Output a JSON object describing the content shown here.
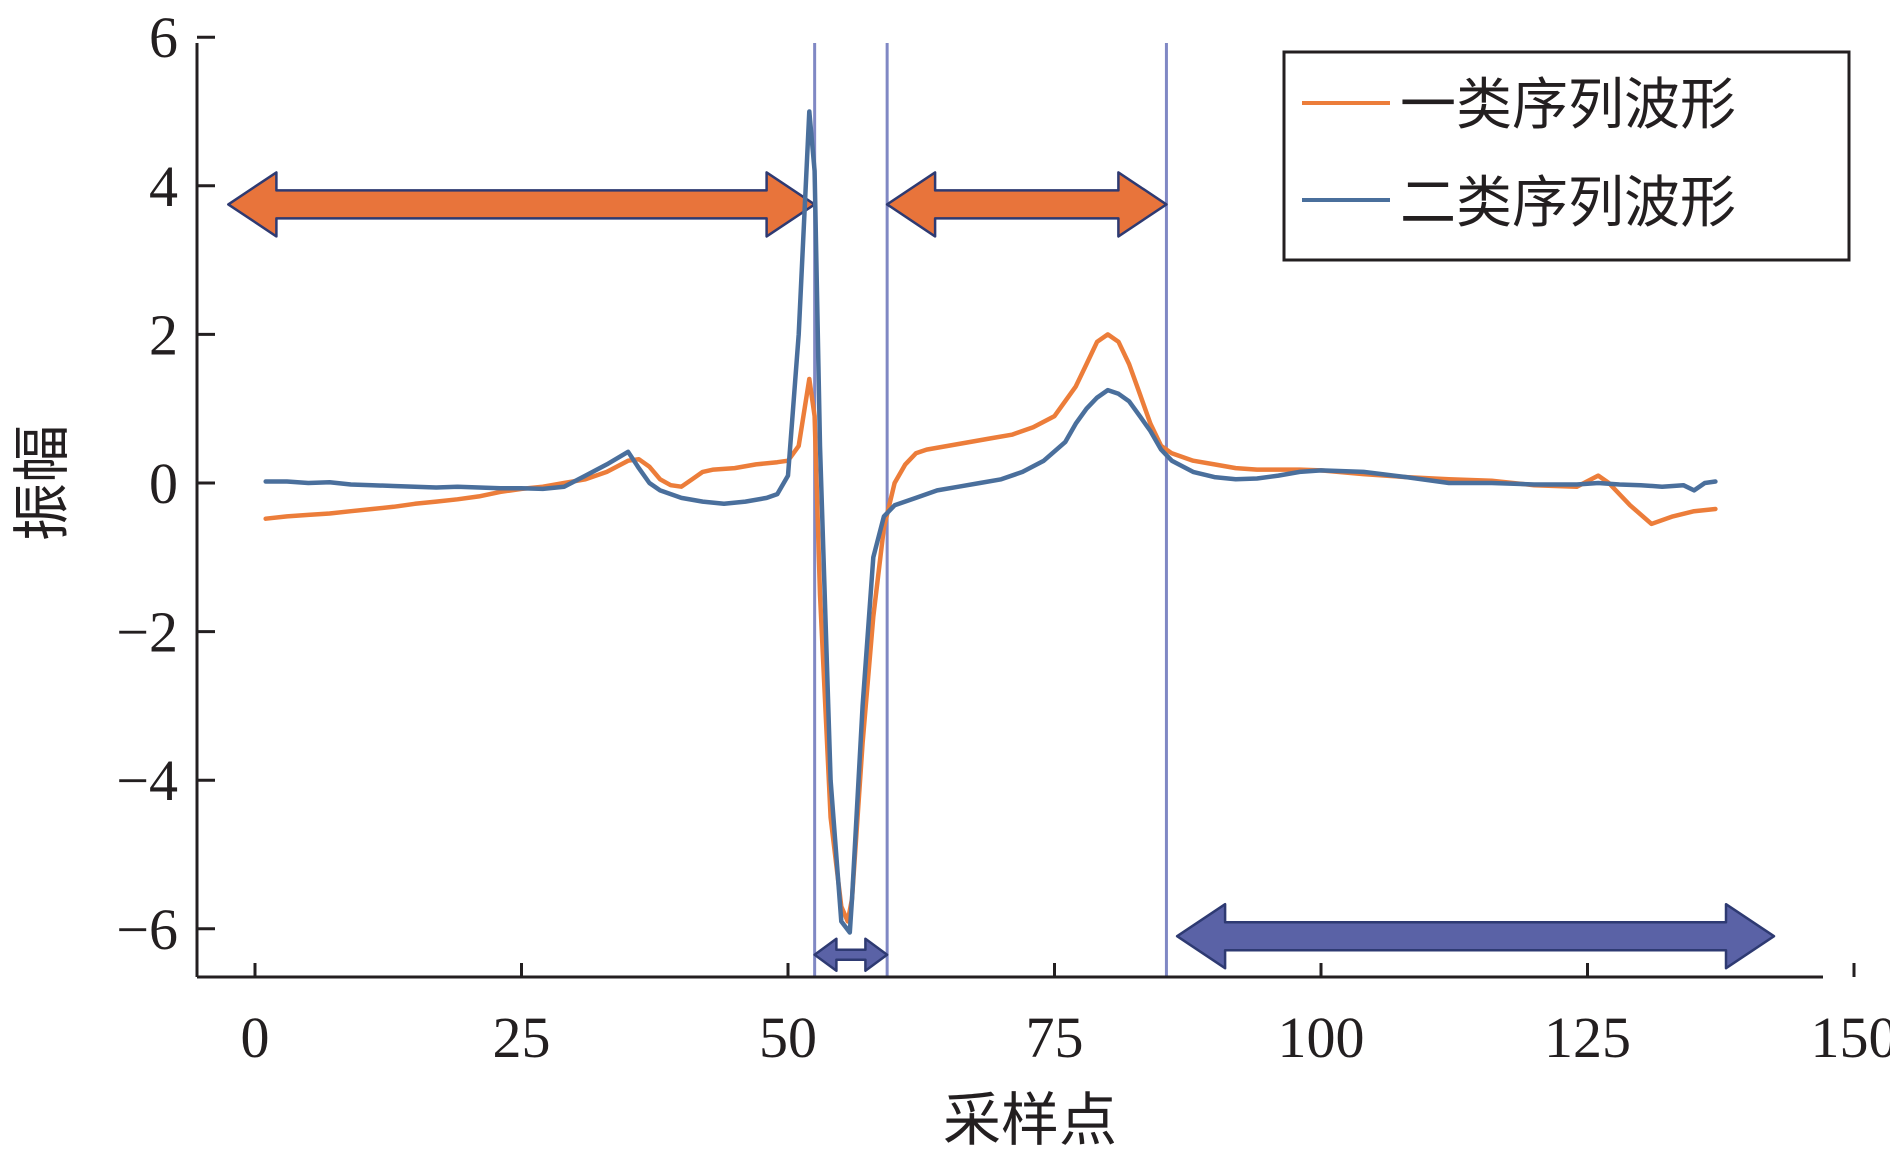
{
  "chart_data": {
    "type": "line",
    "xlabel": "采样点",
    "ylabel": "振幅",
    "xlim": [
      -5,
      150
    ],
    "ylim": [
      -6.8,
      6
    ],
    "xticks": [
      "0",
      "25",
      "50",
      "75",
      "100",
      "125",
      "150"
    ],
    "yticks": [
      "6",
      "4",
      "2",
      "0",
      "−2",
      "−4",
      "−6"
    ],
    "legend_position": "top-right",
    "legend": [
      {
        "label": "一类序列波形",
        "color": "#ec7d3a"
      },
      {
        "label": "二类序列波形",
        "color": "#4a6f9c"
      }
    ],
    "series": [
      {
        "name": "一类序列波形",
        "color": "#ec7d3a",
        "points": [
          [
            1,
            -0.48
          ],
          [
            3,
            -0.45
          ],
          [
            5,
            -0.43
          ],
          [
            7,
            -0.41
          ],
          [
            9,
            -0.38
          ],
          [
            11,
            -0.35
          ],
          [
            13,
            -0.32
          ],
          [
            15,
            -0.28
          ],
          [
            17,
            -0.25
          ],
          [
            19,
            -0.22
          ],
          [
            21,
            -0.18
          ],
          [
            23,
            -0.12
          ],
          [
            25,
            -0.08
          ],
          [
            27,
            -0.05
          ],
          [
            29,
            0.0
          ],
          [
            31,
            0.05
          ],
          [
            33,
            0.15
          ],
          [
            35,
            0.3
          ],
          [
            36,
            0.32
          ],
          [
            37,
            0.22
          ],
          [
            38,
            0.05
          ],
          [
            39,
            -0.03
          ],
          [
            40,
            -0.05
          ],
          [
            41,
            0.05
          ],
          [
            42,
            0.15
          ],
          [
            43,
            0.18
          ],
          [
            45,
            0.2
          ],
          [
            47,
            0.25
          ],
          [
            49,
            0.28
          ],
          [
            50,
            0.3
          ],
          [
            51,
            0.5
          ],
          [
            52,
            1.4
          ],
          [
            52.5,
            0.9
          ],
          [
            53,
            -1.5
          ],
          [
            54,
            -4.5
          ],
          [
            55,
            -5.7
          ],
          [
            55.6,
            -5.9
          ],
          [
            56,
            -5.6
          ],
          [
            57,
            -3.5
          ],
          [
            58,
            -1.8
          ],
          [
            59,
            -0.6
          ],
          [
            60,
            0.0
          ],
          [
            61,
            0.25
          ],
          [
            62,
            0.4
          ],
          [
            63,
            0.45
          ],
          [
            65,
            0.5
          ],
          [
            67,
            0.55
          ],
          [
            69,
            0.6
          ],
          [
            71,
            0.65
          ],
          [
            73,
            0.75
          ],
          [
            75,
            0.9
          ],
          [
            77,
            1.3
          ],
          [
            78,
            1.6
          ],
          [
            79,
            1.9
          ],
          [
            80,
            2.0
          ],
          [
            81,
            1.9
          ],
          [
            82,
            1.6
          ],
          [
            83,
            1.2
          ],
          [
            84,
            0.8
          ],
          [
            85,
            0.5
          ],
          [
            86,
            0.4
          ],
          [
            88,
            0.3
          ],
          [
            90,
            0.25
          ],
          [
            92,
            0.2
          ],
          [
            94,
            0.18
          ],
          [
            96,
            0.18
          ],
          [
            98,
            0.18
          ],
          [
            100,
            0.17
          ],
          [
            104,
            0.12
          ],
          [
            108,
            0.08
          ],
          [
            112,
            0.05
          ],
          [
            116,
            0.03
          ],
          [
            120,
            -0.03
          ],
          [
            124,
            -0.05
          ],
          [
            126,
            0.1
          ],
          [
            127,
            0.0
          ],
          [
            129,
            -0.3
          ],
          [
            131,
            -0.55
          ],
          [
            133,
            -0.45
          ],
          [
            135,
            -0.38
          ],
          [
            137,
            -0.35
          ]
        ]
      },
      {
        "name": "二类序列波形",
        "color": "#4a6f9c",
        "points": [
          [
            1,
            0.02
          ],
          [
            3,
            0.02
          ],
          [
            5,
            0.0
          ],
          [
            7,
            0.01
          ],
          [
            9,
            -0.02
          ],
          [
            11,
            -0.03
          ],
          [
            13,
            -0.04
          ],
          [
            15,
            -0.05
          ],
          [
            17,
            -0.06
          ],
          [
            19,
            -0.05
          ],
          [
            21,
            -0.06
          ],
          [
            23,
            -0.07
          ],
          [
            25,
            -0.07
          ],
          [
            27,
            -0.08
          ],
          [
            29,
            -0.05
          ],
          [
            31,
            0.1
          ],
          [
            33,
            0.25
          ],
          [
            35,
            0.42
          ],
          [
            36,
            0.2
          ],
          [
            37,
            0.0
          ],
          [
            38,
            -0.1
          ],
          [
            40,
            -0.2
          ],
          [
            42,
            -0.25
          ],
          [
            44,
            -0.28
          ],
          [
            46,
            -0.25
          ],
          [
            48,
            -0.2
          ],
          [
            49,
            -0.15
          ],
          [
            50,
            0.1
          ],
          [
            51,
            2.0
          ],
          [
            52,
            5.0
          ],
          [
            52.5,
            4.2
          ],
          [
            53,
            0.5
          ],
          [
            54,
            -4.0
          ],
          [
            55,
            -5.9
          ],
          [
            55.8,
            -6.05
          ],
          [
            56,
            -5.6
          ],
          [
            57,
            -3.0
          ],
          [
            58,
            -1.0
          ],
          [
            59,
            -0.45
          ],
          [
            60,
            -0.3
          ],
          [
            62,
            -0.2
          ],
          [
            64,
            -0.1
          ],
          [
            66,
            -0.05
          ],
          [
            68,
            0.0
          ],
          [
            70,
            0.05
          ],
          [
            72,
            0.15
          ],
          [
            74,
            0.3
          ],
          [
            76,
            0.55
          ],
          [
            77,
            0.8
          ],
          [
            78,
            1.0
          ],
          [
            79,
            1.15
          ],
          [
            80,
            1.25
          ],
          [
            81,
            1.2
          ],
          [
            82,
            1.1
          ],
          [
            83,
            0.9
          ],
          [
            84,
            0.7
          ],
          [
            85,
            0.45
          ],
          [
            86,
            0.3
          ],
          [
            88,
            0.15
          ],
          [
            90,
            0.08
          ],
          [
            92,
            0.05
          ],
          [
            94,
            0.06
          ],
          [
            96,
            0.1
          ],
          [
            98,
            0.15
          ],
          [
            100,
            0.17
          ],
          [
            104,
            0.15
          ],
          [
            108,
            0.08
          ],
          [
            112,
            0.0
          ],
          [
            116,
            0.0
          ],
          [
            120,
            -0.02
          ],
          [
            124,
            -0.02
          ],
          [
            126,
            0.0
          ],
          [
            128,
            -0.02
          ],
          [
            130,
            -0.03
          ],
          [
            132,
            -0.05
          ],
          [
            134,
            -0.03
          ],
          [
            135,
            -0.1
          ],
          [
            136,
            0.0
          ],
          [
            137,
            0.02
          ]
        ]
      }
    ],
    "markers": {
      "vertical_lines_x": [
        52.5,
        59.3,
        85.5
      ],
      "arrows": [
        {
          "from": -2.5,
          "to": 52.5,
          "y": 3.75,
          "color": "#e8743b"
        },
        {
          "from": 59.3,
          "to": 85.5,
          "y": 3.75,
          "color": "#e8743b"
        },
        {
          "from": 52.5,
          "to": 59.3,
          "y": -6.35,
          "color": "#5a62a6"
        },
        {
          "from": 86.5,
          "to": 142.5,
          "y": -6.1,
          "color": "#5a62a6"
        }
      ]
    }
  }
}
